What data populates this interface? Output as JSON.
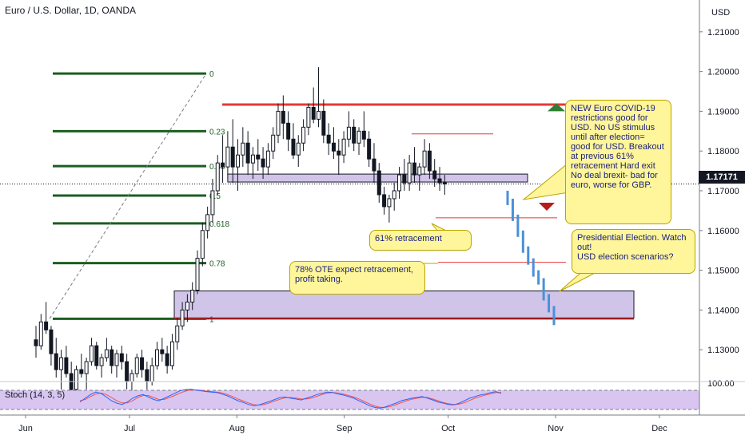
{
  "header": {
    "title": "Euro / U.S. Dollar, 1D, OANDA",
    "currency": "USD",
    "last_price": "1.17171"
  },
  "colors": {
    "up": "#131722",
    "down": "#131722",
    "fib": "#1b5e20",
    "resistance": "#e53935",
    "zone_fill": "#d1c4e9",
    "projection": "#4a90d9",
    "callout_fill": "#fff59a",
    "stoch_k": "#2962ff",
    "stoch_d": "#ef5350",
    "stoch_band": "#d8c6f0"
  },
  "callouts": {
    "covid": "NEW Euro COVID-19 restrictions good for USD. No US stimulus until after election= good for USD. Breakout at previous 61% retracement Hard exit No deal brexit- bad for euro, worse for GBP.",
    "election": "Presidential Election. Watch out!\nUSD election scenarios?",
    "retrace61": "61% retracement",
    "ote": "78% OTE expect retracement, profit taking."
  },
  "stoch_label": "Stoch (14, 3, 5)",
  "chart_data": {
    "type": "candlestick",
    "title": "Euro / U.S. Dollar, 1D, OANDA",
    "ylabel": "USD",
    "ylim": [
      1.122,
      1.218
    ],
    "yticks": [
      "1.21000",
      "1.20000",
      "1.19000",
      "1.18000",
      "1.17000",
      "1.16000",
      "1.15000",
      "1.14000",
      "1.13000"
    ],
    "ytick_values": [
      1.21,
      1.2,
      1.19,
      1.18,
      1.17,
      1.16,
      1.15,
      1.14,
      1.13
    ],
    "xlim": [
      1,
      125
    ],
    "x_axis_labels": [
      {
        "label": "Jun",
        "day": 3
      },
      {
        "label": "Jul",
        "day": 33
      },
      {
        "label": "Aug",
        "day": 64
      },
      {
        "label": "Sep",
        "day": 95
      },
      {
        "label": "Oct",
        "day": 125
      },
      {
        "label": "Nov",
        "day": 156
      },
      {
        "label": "Dec",
        "day": 186
      }
    ],
    "fib_levels": [
      {
        "label": "0",
        "value": 1.1995
      },
      {
        "label": "0.23",
        "value": 1.185
      },
      {
        "label": "0.38",
        "value": 1.1762
      },
      {
        "label": "0.5",
        "value": 1.1688
      },
      {
        "label": "0.618",
        "value": 1.1618
      },
      {
        "label": "0.78",
        "value": 1.1518
      },
      {
        "label": "1",
        "value": 1.1378
      }
    ],
    "resistance": 1.1917,
    "support": 1.1378,
    "candles": [
      [
        1.1325,
        1.136,
        1.128,
        1.131
      ],
      [
        1.131,
        1.139,
        1.13,
        1.137
      ],
      [
        1.137,
        1.142,
        1.134,
        1.135
      ],
      [
        1.135,
        1.136,
        1.126,
        1.129
      ],
      [
        1.129,
        1.133,
        1.123,
        1.125
      ],
      [
        1.125,
        1.13,
        1.12,
        1.128
      ],
      [
        1.128,
        1.131,
        1.123,
        1.124
      ],
      [
        1.124,
        1.127,
        1.1185,
        1.12
      ],
      [
        1.12,
        1.126,
        1.118,
        1.125
      ],
      [
        1.125,
        1.129,
        1.123,
        1.124
      ],
      [
        1.124,
        1.128,
        1.12,
        1.127
      ],
      [
        1.127,
        1.133,
        1.126,
        1.131
      ],
      [
        1.131,
        1.132,
        1.125,
        1.126
      ],
      [
        1.126,
        1.129,
        1.123,
        1.128
      ],
      [
        1.128,
        1.133,
        1.127,
        1.13
      ],
      [
        1.13,
        1.131,
        1.124,
        1.126
      ],
      [
        1.126,
        1.13,
        1.123,
        1.129
      ],
      [
        1.129,
        1.131,
        1.125,
        1.127
      ],
      [
        1.127,
        1.129,
        1.12,
        1.122
      ],
      [
        1.122,
        1.125,
        1.119,
        1.124
      ],
      [
        1.124,
        1.129,
        1.123,
        1.128
      ],
      [
        1.128,
        1.13,
        1.123,
        1.125
      ],
      [
        1.125,
        1.127,
        1.12,
        1.122
      ],
      [
        1.122,
        1.128,
        1.121,
        1.126
      ],
      [
        1.126,
        1.132,
        1.125,
        1.13
      ],
      [
        1.13,
        1.133,
        1.127,
        1.129
      ],
      [
        1.129,
        1.131,
        1.124,
        1.126
      ],
      [
        1.126,
        1.134,
        1.125,
        1.132
      ],
      [
        1.132,
        1.138,
        1.13,
        1.136
      ],
      [
        1.136,
        1.142,
        1.135,
        1.14
      ],
      [
        1.14,
        1.144,
        1.137,
        1.142
      ],
      [
        1.142,
        1.147,
        1.14,
        1.145
      ],
      [
        1.145,
        1.155,
        1.144,
        1.153
      ],
      [
        1.153,
        1.162,
        1.151,
        1.16
      ],
      [
        1.16,
        1.166,
        1.158,
        1.164
      ],
      [
        1.164,
        1.173,
        1.162,
        1.17
      ],
      [
        1.17,
        1.179,
        1.169,
        1.177
      ],
      [
        1.177,
        1.184,
        1.172,
        1.176
      ],
      [
        1.176,
        1.185,
        1.174,
        1.181
      ],
      [
        1.181,
        1.188,
        1.172,
        1.176
      ],
      [
        1.176,
        1.183,
        1.17,
        1.179
      ],
      [
        1.179,
        1.186,
        1.176,
        1.182
      ],
      [
        1.182,
        1.185,
        1.174,
        1.177
      ],
      [
        1.177,
        1.181,
        1.173,
        1.179
      ],
      [
        1.179,
        1.183,
        1.175,
        1.178
      ],
      [
        1.178,
        1.181,
        1.173,
        1.176
      ],
      [
        1.176,
        1.182,
        1.174,
        1.18
      ],
      [
        1.18,
        1.186,
        1.178,
        1.184
      ],
      [
        1.184,
        1.192,
        1.182,
        1.19
      ],
      [
        1.19,
        1.194,
        1.183,
        1.187
      ],
      [
        1.187,
        1.19,
        1.18,
        1.183
      ],
      [
        1.183,
        1.187,
        1.178,
        1.179
      ],
      [
        1.179,
        1.184,
        1.176,
        1.182
      ],
      [
        1.182,
        1.188,
        1.18,
        1.186
      ],
      [
        1.186,
        1.192,
        1.184,
        1.191
      ],
      [
        1.191,
        1.196,
        1.187,
        1.188
      ],
      [
        1.188,
        1.2011,
        1.186,
        1.19
      ],
      [
        1.19,
        1.193,
        1.182,
        1.184
      ],
      [
        1.184,
        1.187,
        1.179,
        1.182
      ],
      [
        1.182,
        1.186,
        1.178,
        1.18
      ],
      [
        1.18,
        1.183,
        1.174,
        1.179
      ],
      [
        1.179,
        1.185,
        1.177,
        1.183
      ],
      [
        1.183,
        1.19,
        1.181,
        1.186
      ],
      [
        1.186,
        1.188,
        1.18,
        1.182
      ],
      [
        1.182,
        1.186,
        1.179,
        1.185
      ],
      [
        1.185,
        1.19,
        1.181,
        1.183
      ],
      [
        1.183,
        1.185,
        1.176,
        1.178
      ],
      [
        1.178,
        1.182,
        1.172,
        1.175
      ],
      [
        1.175,
        1.177,
        1.167,
        1.169
      ],
      [
        1.169,
        1.171,
        1.164,
        1.166
      ],
      [
        1.166,
        1.169,
        1.162,
        1.168
      ],
      [
        1.168,
        1.172,
        1.165,
        1.17
      ],
      [
        1.17,
        1.176,
        1.168,
        1.174
      ],
      [
        1.174,
        1.178,
        1.17,
        1.172
      ],
      [
        1.172,
        1.179,
        1.17,
        1.177
      ],
      [
        1.177,
        1.181,
        1.172,
        1.174
      ],
      [
        1.174,
        1.177,
        1.17,
        1.176
      ],
      [
        1.176,
        1.183,
        1.174,
        1.18
      ],
      [
        1.18,
        1.182,
        1.173,
        1.175
      ],
      [
        1.175,
        1.178,
        1.171,
        1.173
      ],
      [
        1.173,
        1.176,
        1.17,
        1.172
      ],
      [
        1.172,
        1.174,
        1.169,
        1.1717
      ]
    ],
    "projection": [
      [
        1.17,
        1.168
      ],
      [
        1.168,
        1.164
      ],
      [
        1.164,
        1.16
      ],
      [
        1.16,
        1.156
      ],
      [
        1.156,
        1.153
      ],
      [
        1.153,
        1.15
      ],
      [
        1.15,
        1.148
      ],
      [
        1.148,
        1.144
      ],
      [
        1.144,
        1.141
      ],
      [
        1.141,
        1.1378
      ]
    ],
    "stoch": {
      "label": "Stoch (14, 3, 5)",
      "ytick": "100.00",
      "k": [
        40,
        55,
        70,
        80,
        75,
        60,
        45,
        35,
        30,
        40,
        55,
        65,
        70,
        60,
        50,
        45,
        55,
        65,
        75,
        85,
        90,
        92,
        88,
        85,
        82,
        80,
        78,
        72,
        65,
        55,
        45,
        38,
        30,
        25,
        28,
        35,
        42,
        50,
        58,
        60,
        55,
        52,
        48,
        55,
        62,
        70,
        75,
        80,
        78,
        72,
        68,
        62,
        55,
        45,
        35,
        25,
        18,
        15,
        20,
        28,
        35,
        45,
        50,
        55,
        58,
        62,
        55,
        48,
        40,
        35,
        30,
        28,
        35,
        45,
        55,
        62,
        68,
        72,
        78,
        82,
        75
      ],
      "d": [
        45,
        50,
        62,
        72,
        76,
        70,
        58,
        45,
        36,
        36,
        45,
        58,
        66,
        66,
        58,
        50,
        50,
        58,
        66,
        76,
        84,
        88,
        89,
        87,
        84,
        82,
        80,
        76,
        70,
        62,
        52,
        44,
        36,
        29,
        27,
        30,
        36,
        44,
        51,
        57,
        58,
        56,
        52,
        52,
        56,
        63,
        70,
        76,
        78,
        76,
        72,
        66,
        60,
        52,
        42,
        32,
        24,
        18,
        18,
        22,
        29,
        37,
        45,
        51,
        55,
        59,
        58,
        52,
        45,
        38,
        33,
        30,
        31,
        37,
        46,
        55,
        62,
        68,
        73,
        78,
        78
      ]
    }
  }
}
